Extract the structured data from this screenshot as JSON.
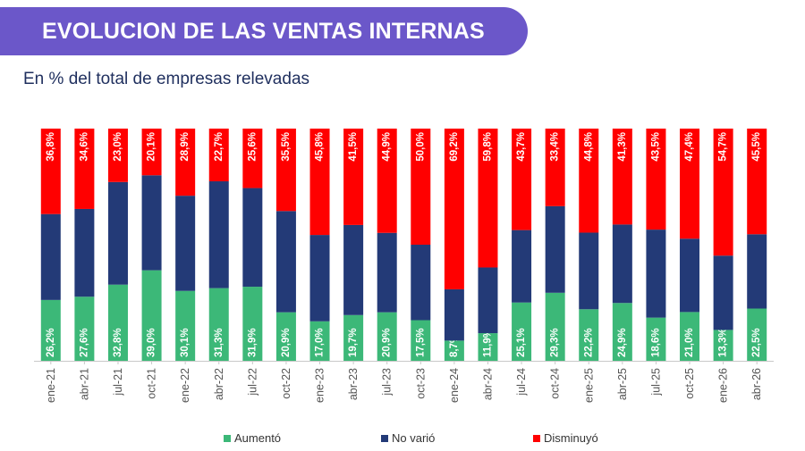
{
  "header": {
    "title": "EVOLUCION DE LAS VENTAS INTERNAS",
    "subtitle": "En % del total de empresas relevadas"
  },
  "colors": {
    "banner": "#6b57c9",
    "aumento": "#3cb878",
    "no_vario": "#233a77",
    "disminuyo": "#ff0000"
  },
  "chart_data": {
    "type": "bar",
    "stacked": true,
    "categories": [
      "ene-21",
      "abr-21",
      "jul-21",
      "oct-21",
      "ene-22",
      "abr-22",
      "jul-22",
      "oct-22",
      "ene-23",
      "abr-23",
      "jul-23",
      "oct-23",
      "ene-24",
      "abr-24",
      "jul-24",
      "oct-24",
      "ene-25",
      "abr-25",
      "jul-25",
      "oct-25",
      "ene-26",
      "abr-26"
    ],
    "series": [
      {
        "name": "Aumentó",
        "color": "#3cb878",
        "values": [
          26.2,
          27.6,
          32.8,
          39.0,
          30.1,
          31.3,
          31.9,
          20.9,
          17.0,
          19.7,
          20.9,
          17.5,
          8.7,
          11.9,
          25.1,
          29.3,
          22.2,
          24.9,
          18.6,
          21.0,
          13.3,
          22.5
        ],
        "labels": [
          "26,2%",
          "27,6%",
          "32,8%",
          "39,0%",
          "30,1%",
          "31,3%",
          "31,9%",
          "20,9%",
          "17,0%",
          "19,7%",
          "20,9%",
          "17,5%",
          "8,7%",
          "11,9%",
          "25,1%",
          "29,3%",
          "22,2%",
          "24,9%",
          "18,6%",
          "21,0%",
          "13,3%",
          "22,5%"
        ]
      },
      {
        "name": "No varió",
        "color": "#233a77",
        "values": [
          37.0,
          37.8,
          44.2,
          40.9,
          41.0,
          46.0,
          42.5,
          43.6,
          37.2,
          38.8,
          34.2,
          32.5,
          22.1,
          28.3,
          31.2,
          37.3,
          33.0,
          33.8,
          37.9,
          31.6,
          32.0,
          32.0
        ],
        "labels": []
      },
      {
        "name": "Disminuyó",
        "color": "#ff0000",
        "values": [
          36.8,
          34.6,
          23.0,
          20.1,
          28.9,
          22.7,
          25.6,
          35.5,
          45.8,
          41.5,
          44.9,
          50.0,
          69.2,
          59.8,
          43.7,
          33.4,
          44.8,
          41.3,
          43.5,
          47.4,
          54.7,
          45.5
        ],
        "labels": [
          "36,8%",
          "34,6%",
          "23,0%",
          "20,1%",
          "28,9%",
          "22,7%",
          "25,6%",
          "35,5%",
          "45,8%",
          "41,5%",
          "44,9%",
          "50,0%",
          "69,2%",
          "59,8%",
          "43,7%",
          "33,4%",
          "44,8%",
          "41,3%",
          "43,5%",
          "47,4%",
          "54,7%",
          "45,5%"
        ]
      }
    ],
    "ylim": [
      0,
      100
    ],
    "grid": false,
    "legend_position": "bottom"
  }
}
